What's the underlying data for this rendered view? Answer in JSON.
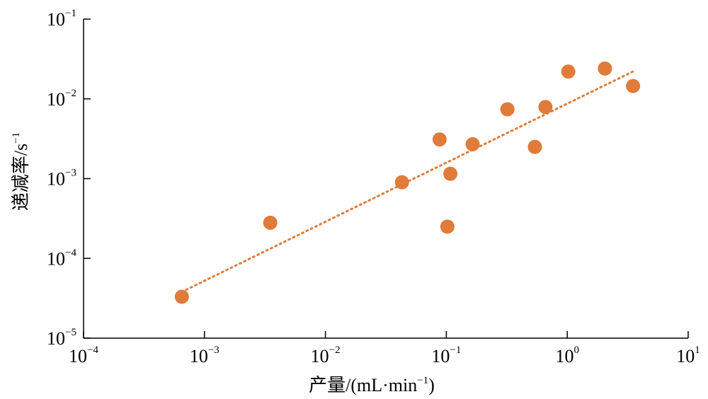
{
  "chart_data": {
    "type": "scatter",
    "xlabel": {
      "main": "产量/(mL·min",
      "sup": "−1",
      "end": ")"
    },
    "ylabel": {
      "main": "递减率/s",
      "sup": "−1"
    },
    "x_scale": "log",
    "y_scale": "log",
    "xlim": [
      0.0001,
      10
    ],
    "ylim": [
      1e-05,
      0.1
    ],
    "x_ticks": [
      {
        "value": 0.0001,
        "base": "10",
        "exp": "−4"
      },
      {
        "value": 0.001,
        "base": "10",
        "exp": "−3"
      },
      {
        "value": 0.01,
        "base": "10",
        "exp": "−2"
      },
      {
        "value": 0.1,
        "base": "10",
        "exp": "−1"
      },
      {
        "value": 1,
        "base": "10",
        "exp": "0"
      },
      {
        "value": 10,
        "base": "10",
        "exp": "1"
      }
    ],
    "y_ticks": [
      {
        "value": 1e-05,
        "base": "10",
        "exp": "−5"
      },
      {
        "value": 0.0001,
        "base": "10",
        "exp": "−4"
      },
      {
        "value": 0.001,
        "base": "10",
        "exp": "−3"
      },
      {
        "value": 0.01,
        "base": "10",
        "exp": "−2"
      },
      {
        "value": 0.1,
        "base": "10",
        "exp": "−1"
      }
    ],
    "grid": false,
    "colors": {
      "points": "#E07B39",
      "trendline": "#E07B39",
      "axis": "#000000"
    },
    "points": [
      {
        "x": 0.00065,
        "y": 3.3e-05
      },
      {
        "x": 0.0035,
        "y": 0.00028
      },
      {
        "x": 0.043,
        "y": 0.0009
      },
      {
        "x": 0.088,
        "y": 0.0031
      },
      {
        "x": 0.102,
        "y": 0.00025
      },
      {
        "x": 0.108,
        "y": 0.00115
      },
      {
        "x": 0.165,
        "y": 0.0027
      },
      {
        "x": 0.32,
        "y": 0.0074
      },
      {
        "x": 0.54,
        "y": 0.0025
      },
      {
        "x": 0.66,
        "y": 0.0079
      },
      {
        "x": 1.02,
        "y": 0.022
      },
      {
        "x": 2.05,
        "y": 0.024
      },
      {
        "x": 3.5,
        "y": 0.0145
      }
    ],
    "trendline": {
      "style": "dotted",
      "x": [
        0.00065,
        3.5
      ],
      "y": [
        3.8e-05,
        0.022
      ]
    }
  }
}
